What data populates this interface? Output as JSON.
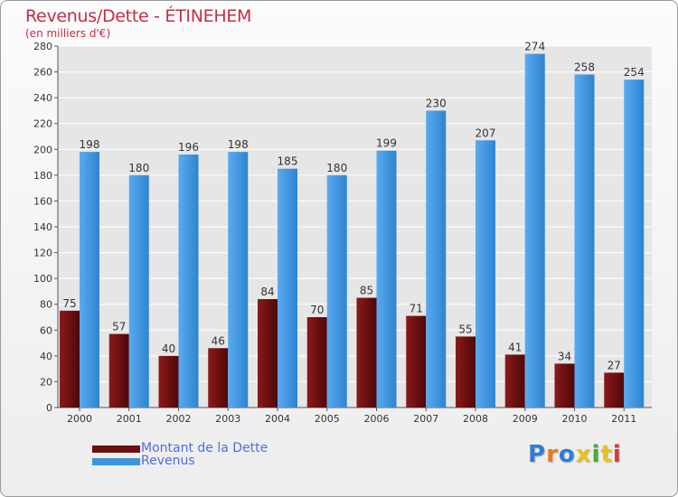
{
  "header": {
    "title": "Revenus/Dette - ÉTINEHEM",
    "subtitle": "(en milliers d'€)"
  },
  "colors": {
    "title": "#c0304a",
    "debt": "#6b0f0f",
    "revenue": "#3d95dc",
    "grid": "#ffffff",
    "legend_text": "#4f6ee0"
  },
  "legend": [
    {
      "label": "Montant de la Dette",
      "color": "#6b0f0f"
    },
    {
      "label": "Revenus",
      "color": "#3d95dc"
    }
  ],
  "logo": {
    "text": "Proxiti",
    "letter_colors": [
      "#2e7dd6",
      "#e87b1c",
      "#2e7dd6",
      "#e8c31c",
      "#4aa83a",
      "#e8c31c",
      "#d63a3a"
    ]
  },
  "chart_data": {
    "type": "bar",
    "title": "Revenus/Dette - ÉTINEHEM",
    "subtitle": "(en milliers d'€)",
    "categories": [
      "2000",
      "2001",
      "2002",
      "2003",
      "2004",
      "2005",
      "2006",
      "2007",
      "2008",
      "2009",
      "2010",
      "2011"
    ],
    "series": [
      {
        "name": "Montant de la Dette",
        "values": [
          75,
          57,
          40,
          46,
          84,
          70,
          85,
          71,
          55,
          41,
          34,
          27
        ]
      },
      {
        "name": "Revenus",
        "values": [
          198,
          180,
          196,
          198,
          185,
          180,
          199,
          230,
          207,
          274,
          258,
          254
        ]
      }
    ],
    "ylim": [
      0,
      280
    ],
    "yticks": [
      0,
      20,
      40,
      60,
      80,
      100,
      120,
      140,
      160,
      180,
      200,
      220,
      240,
      260,
      280
    ],
    "grid": true,
    "legend_position": "bottom-left"
  }
}
